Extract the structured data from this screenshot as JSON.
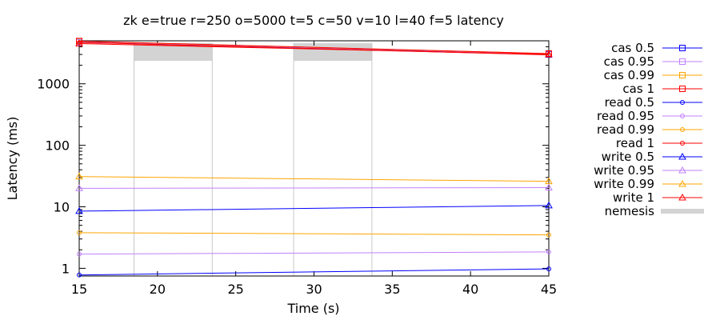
{
  "chart_data": {
    "type": "line",
    "title": "zk e=true r=250 o=5000 t=5 c=50 v=10 l=40 f=5 latency",
    "xlabel": "Time (s)",
    "ylabel": "Latency (ms)",
    "xlim": [
      15,
      45
    ],
    "ylim": [
      0.75,
      5000
    ],
    "y_scale": "log",
    "grid": false,
    "legend_position": "right",
    "x_ticks": [
      15,
      20,
      25,
      30,
      35,
      40,
      45
    ],
    "y_ticks": [
      1,
      10,
      100,
      1000
    ],
    "series": [
      {
        "name": "cas 0.5",
        "color": "#0000ff",
        "marker": "square",
        "x": [
          15,
          45
        ],
        "y": [
          4800,
          3000
        ]
      },
      {
        "name": "cas 0.95",
        "color": "#c080ff",
        "marker": "square",
        "x": [
          15,
          45
        ],
        "y": [
          4850,
          3050
        ]
      },
      {
        "name": "cas 0.99",
        "color": "#ffa500",
        "marker": "square",
        "x": [
          15,
          45
        ],
        "y": [
          4900,
          3100
        ]
      },
      {
        "name": "cas 1",
        "color": "#ff0000",
        "marker": "square",
        "x": [
          15,
          45
        ],
        "y": [
          4950,
          3100
        ]
      },
      {
        "name": "read 0.5",
        "color": "#0000ff",
        "marker": "circle",
        "x": [
          15,
          45
        ],
        "y": [
          0.78,
          0.98
        ]
      },
      {
        "name": "read 0.95",
        "color": "#c080ff",
        "marker": "circle",
        "x": [
          15,
          45
        ],
        "y": [
          1.7,
          1.85
        ]
      },
      {
        "name": "read 0.99",
        "color": "#ffa500",
        "marker": "circle",
        "x": [
          15,
          45
        ],
        "y": [
          3.8,
          3.5
        ]
      },
      {
        "name": "read 1",
        "color": "#ff0000",
        "marker": "circle",
        "x": [
          15,
          45
        ],
        "y": [
          4700,
          2950
        ]
      },
      {
        "name": "write 0.5",
        "color": "#0000ff",
        "marker": "triangle",
        "x": [
          15,
          45
        ],
        "y": [
          8.5,
          10.5
        ]
      },
      {
        "name": "write 0.95",
        "color": "#c080ff",
        "marker": "triangle",
        "x": [
          15,
          45
        ],
        "y": [
          20,
          20.5
        ]
      },
      {
        "name": "write 0.99",
        "color": "#ffa500",
        "marker": "triangle",
        "x": [
          15,
          45
        ],
        "y": [
          31,
          26
        ]
      },
      {
        "name": "write 1",
        "color": "#ff0000",
        "marker": "triangle",
        "x": [
          15,
          45
        ],
        "y": [
          4500,
          3000
        ]
      }
    ],
    "nemesis": {
      "name": "nemesis",
      "color": "#d3d3d3",
      "intervals": [
        [
          18.5,
          23.5
        ],
        [
          28.7,
          33.7
        ]
      ]
    }
  }
}
